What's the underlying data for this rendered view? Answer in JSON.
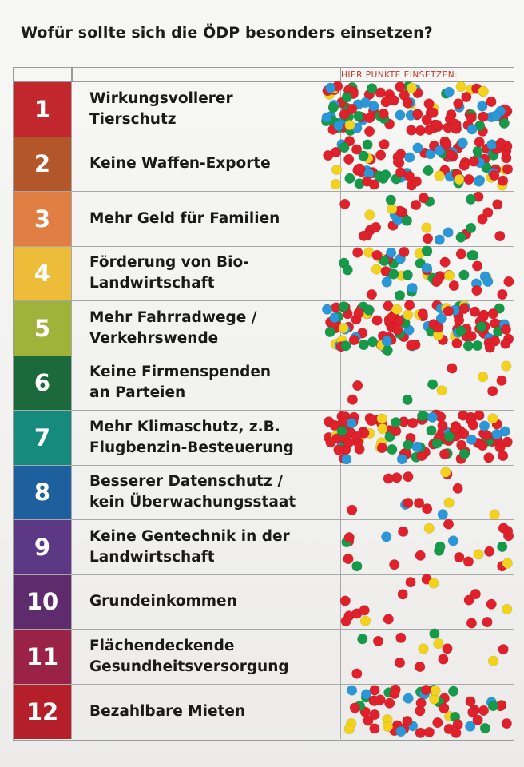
{
  "title": "Wofür sollte sich die ÖDP besonders einsetzen?",
  "dots_header": "HIER PUNKTE EINSETZEN:",
  "colors": {
    "sticker_red": "#e0202a",
    "sticker_green": "#159a4a",
    "sticker_blue": "#2a97d8",
    "sticker_yellow": "#f2d21c"
  },
  "rows": [
    {
      "number": "1",
      "label": "Wirkungsvollerer\nTierschutz",
      "color": "#c1272d",
      "dots": {
        "red": 62,
        "green": 22,
        "blue": 22,
        "yellow": 10
      }
    },
    {
      "number": "2",
      "label": "Keine Waffen-Exporte",
      "color": "#b3562a",
      "dots": {
        "red": 52,
        "green": 18,
        "blue": 20,
        "yellow": 8
      }
    },
    {
      "number": "3",
      "label": "Mehr Geld für Familien",
      "color": "#e07e44",
      "dots": {
        "red": 18,
        "green": 6,
        "blue": 4,
        "yellow": 3
      }
    },
    {
      "number": "4",
      "label": "Förderung von Bio-\nLandwirtschaft",
      "color": "#edbd3a",
      "dots": {
        "red": 18,
        "green": 14,
        "blue": 10,
        "yellow": 8
      }
    },
    {
      "number": "5",
      "label": "Mehr Fahrradwege /\nVerkehrswende",
      "color": "#9fb33b",
      "dots": {
        "red": 70,
        "green": 22,
        "blue": 18,
        "yellow": 14
      }
    },
    {
      "number": "6",
      "label": "Keine Firmenspenden\nan Parteien",
      "color": "#1c6a3c",
      "dots": {
        "red": 5,
        "green": 2,
        "blue": 0,
        "yellow": 3
      }
    },
    {
      "number": "7",
      "label": "Mehr Klimaschutz, z.B.\nFlugbenzin-Besteuerung",
      "color": "#178a7e",
      "dots": {
        "red": 75,
        "green": 18,
        "blue": 14,
        "yellow": 8
      }
    },
    {
      "number": "8",
      "label": "Besserer Datenschutz /\nkein Überwachungsstaat",
      "color": "#1e5f9e",
      "dots": {
        "red": 9,
        "green": 0,
        "blue": 2,
        "yellow": 3
      }
    },
    {
      "number": "9",
      "label": "Keine Gentechnik in der\nLandwirtschaft",
      "color": "#5b3784",
      "dots": {
        "red": 14,
        "green": 5,
        "blue": 2,
        "yellow": 3
      }
    },
    {
      "number": "10",
      "label": "Grundeinkommen",
      "color": "#5e2c6c",
      "dots": {
        "red": 14,
        "green": 0,
        "blue": 0,
        "yellow": 3
      }
    },
    {
      "number": "11",
      "label": "Flächendeckende\nGesundheitsversorgung",
      "color": "#9a2148",
      "dots": {
        "red": 8,
        "green": 2,
        "blue": 0,
        "yellow": 3
      }
    },
    {
      "number": "12",
      "label": "Bezahlbare Mieten",
      "color": "#b41f2a",
      "dots": {
        "red": 35,
        "green": 10,
        "blue": 8,
        "yellow": 7
      }
    }
  ]
}
